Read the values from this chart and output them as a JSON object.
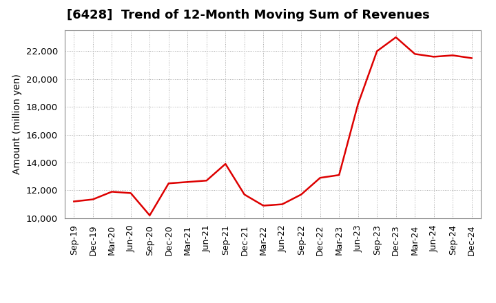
{
  "title": "[6428]  Trend of 12-Month Moving Sum of Revenues",
  "ylabel": "Amount (million yen)",
  "line_color": "#dd0000",
  "background_color": "#ffffff",
  "grid_color": "#aaaaaa",
  "title_fontsize": 13,
  "ylabel_fontsize": 10,
  "tick_labels": [
    "Sep-19",
    "Dec-19",
    "Mar-20",
    "Jun-20",
    "Sep-20",
    "Dec-20",
    "Mar-21",
    "Jun-21",
    "Sep-21",
    "Dec-21",
    "Mar-22",
    "Jun-22",
    "Sep-22",
    "Dec-22",
    "Mar-23",
    "Jun-23",
    "Sep-23",
    "Dec-23",
    "Mar-24",
    "Jun-24",
    "Sep-24",
    "Dec-24"
  ],
  "values": [
    11200,
    11350,
    11900,
    11800,
    10200,
    12500,
    12600,
    12700,
    13900,
    11700,
    10900,
    11000,
    11700,
    12900,
    13100,
    18200,
    22000,
    23000,
    21800,
    21600,
    21700,
    21500
  ],
  "ylim": [
    10000,
    23500
  ],
  "yticks": [
    10000,
    12000,
    14000,
    16000,
    18000,
    20000,
    22000
  ],
  "line_width": 1.8,
  "tick_fontsize": 9.0,
  "ytick_fontsize": 9.5
}
